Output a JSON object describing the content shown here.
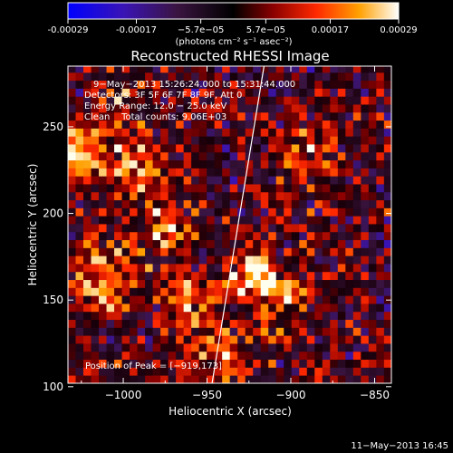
{
  "colorbar": {
    "tick_labels": [
      "-0.00029",
      "-0.00017",
      "−5.7e−05",
      "5.7e−05",
      "0.00017",
      "0.00029"
    ],
    "tick_values": [
      -0.00029,
      -0.00017,
      -5.7e-05,
      5.7e-05,
      0.00017,
      0.00029
    ],
    "range": [
      -0.00029,
      0.00029
    ],
    "unit_label": "(photons cm⁻² s⁻¹ asec⁻²)"
  },
  "chart_data": {
    "type": "heatmap",
    "title": "Reconstructed RHESSI Image",
    "xlabel": "Heliocentric X (arcsec)",
    "ylabel": "Heliocentric Y (arcsec)",
    "xlim": [
      -1033,
      -840
    ],
    "ylim": [
      102,
      285
    ],
    "x_ticks": [
      -1000,
      -950,
      -900,
      -850
    ],
    "x_tick_labels": [
      "−1000",
      "−950",
      "−900",
      "−850"
    ],
    "y_ticks": [
      100,
      150,
      200,
      250
    ],
    "y_tick_labels": [
      "100",
      "150",
      "200",
      "250"
    ],
    "limb_line": {
      "x": [
        -947,
        -916
      ],
      "y": [
        102,
        285
      ]
    },
    "peak": {
      "x": -919,
      "y": 173
    },
    "info_lines": [
      "9−May−2013 15:26:24.000 to 15:31:44.000",
      "Detectors: 3F 5F 6F 7F 8F 9F, Att 0",
      "Energy Range: 12.0 − 25.0 keV",
      "Clean    Total counts: 9.06E+03"
    ],
    "peak_label": "Position of Peak = [−919,173]",
    "hotspots": [
      {
        "x": -923,
        "y": 165,
        "value": 1.0,
        "sigma": 9
      },
      {
        "x": -1025,
        "y": 238,
        "value": 0.85,
        "sigma": 10
      },
      {
        "x": -975,
        "y": 193,
        "value": 0.7,
        "sigma": 9
      },
      {
        "x": -993,
        "y": 225,
        "value": 0.55,
        "sigma": 14
      },
      {
        "x": -1010,
        "y": 165,
        "value": 0.6,
        "sigma": 16
      },
      {
        "x": -962,
        "y": 150,
        "value": 0.6,
        "sigma": 10
      },
      {
        "x": -905,
        "y": 150,
        "value": 0.55,
        "sigma": 12
      },
      {
        "x": -890,
        "y": 235,
        "value": 0.5,
        "sigma": 12
      },
      {
        "x": -940,
        "y": 120,
        "value": 0.5,
        "sigma": 12
      },
      {
        "x": -1000,
        "y": 265,
        "value": 0.45,
        "sigma": 10
      }
    ]
  },
  "footer": {
    "timestamp": "11−May−2013 16:45"
  }
}
